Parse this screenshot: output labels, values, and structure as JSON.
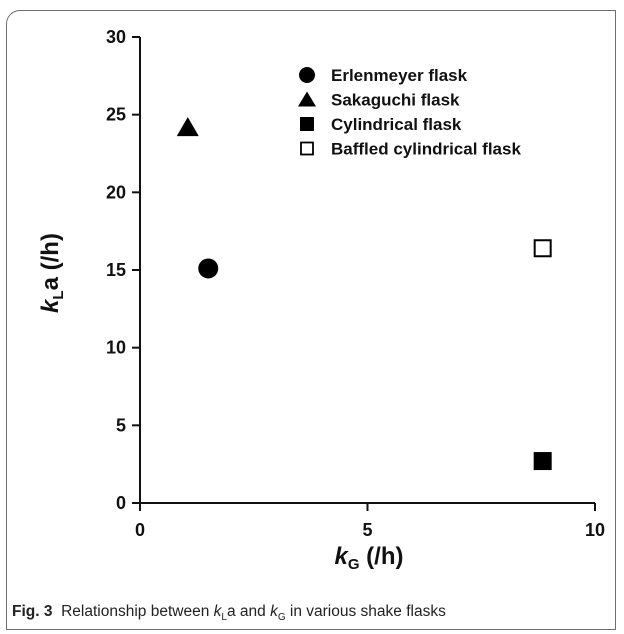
{
  "chart_data": {
    "type": "scatter",
    "xlabel": {
      "var": "k",
      "sub": "G",
      "unit": " (/h)"
    },
    "ylabel": {
      "var": "k",
      "sub": "L",
      "rest": "a",
      "unit": " (/h)"
    },
    "xlim": [
      0,
      10
    ],
    "ylim": [
      0,
      30
    ],
    "xticks": [
      0,
      5,
      10
    ],
    "yticks": [
      0,
      5,
      10,
      15,
      20,
      25,
      30
    ],
    "grid": false,
    "legend_position": "top-right",
    "series": [
      {
        "name": "Erlenmeyer flask",
        "marker": "circle-filled",
        "points": [
          {
            "x": 1.5,
            "y": 15.1
          }
        ]
      },
      {
        "name": "Sakaguchi flask",
        "marker": "triangle-filled",
        "points": [
          {
            "x": 1.05,
            "y": 24.2
          }
        ]
      },
      {
        "name": "Cylindrical flask",
        "marker": "square-filled",
        "points": [
          {
            "x": 8.85,
            "y": 2.7
          }
        ]
      },
      {
        "name": "Baffled cylindrical flask",
        "marker": "square-open",
        "points": [
          {
            "x": 8.85,
            "y": 16.4
          }
        ]
      }
    ]
  },
  "caption": {
    "fig_label": "Fig. 3",
    "text_1": "Relationship between ",
    "k1": "k",
    "sub1": "L",
    "text_2": "a and ",
    "k2": "k",
    "sub2": "G",
    "text_3": " in various shake flasks"
  },
  "colors": {
    "marker": "#000000",
    "axis": "#111111",
    "frame": "#6e6e6e"
  }
}
